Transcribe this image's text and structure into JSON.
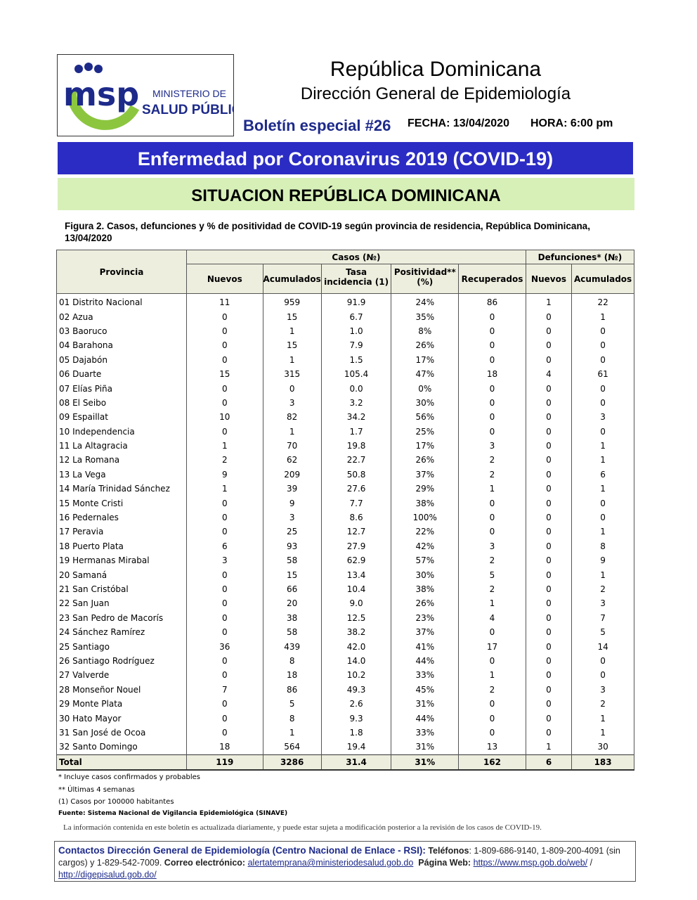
{
  "header": {
    "logo_text": "msp",
    "logo_line1": "MINISTERIO DE",
    "logo_line2": "SALUD PÚBLICA",
    "title": "República Dominicana",
    "subtitle": "Dirección General de Epidemiología",
    "boletin": "Boletín especial #26",
    "fecha": "FECHA: 13/04/2020",
    "hora": "HORA: 6:00 pm"
  },
  "banner": "Enfermedad por Coronavirus 2019 (COVID-19)",
  "section": "SITUACION REPÚBLICA DOMINICANA",
  "figure_caption": "Figura 2. Casos, defunciones y % de positividad de COVID-19 según provincia de residencia, República Dominicana, 13/04/2020",
  "table": {
    "group_headers": {
      "provincia": "Provincia",
      "casos": "Casos (№)",
      "defunciones": "Defunciones* (№)"
    },
    "columns": [
      "Nuevos",
      "Acumulados",
      "Tasa incidencia (1)",
      "Positividad** (%)",
      "Recuperados",
      "Nuevos",
      "Acumulados"
    ],
    "rows": [
      [
        "01 Distrito Nacional",
        "11",
        "959",
        "91.9",
        "24%",
        "86",
        "1",
        "22"
      ],
      [
        "02 Azua",
        "0",
        "15",
        "6.7",
        "35%",
        "0",
        "0",
        "1"
      ],
      [
        "03 Baoruco",
        "0",
        "1",
        "1.0",
        "8%",
        "0",
        "0",
        "0"
      ],
      [
        "04 Barahona",
        "0",
        "15",
        "7.9",
        "26%",
        "0",
        "0",
        "0"
      ],
      [
        "05 Dajabón",
        "0",
        "1",
        "1.5",
        "17%",
        "0",
        "0",
        "0"
      ],
      [
        "06 Duarte",
        "15",
        "315",
        "105.4",
        "47%",
        "18",
        "4",
        "61"
      ],
      [
        "07 Elías Piña",
        "0",
        "0",
        "0.0",
        "0%",
        "0",
        "0",
        "0"
      ],
      [
        "08 El Seibo",
        "0",
        "3",
        "3.2",
        "30%",
        "0",
        "0",
        "0"
      ],
      [
        "09 Espaillat",
        "10",
        "82",
        "34.2",
        "56%",
        "0",
        "0",
        "3"
      ],
      [
        "10 Independencia",
        "0",
        "1",
        "1.7",
        "25%",
        "0",
        "0",
        "0"
      ],
      [
        "11 La Altagracia",
        "1",
        "70",
        "19.8",
        "17%",
        "3",
        "0",
        "1"
      ],
      [
        "12 La Romana",
        "2",
        "62",
        "22.7",
        "26%",
        "2",
        "0",
        "1"
      ],
      [
        "13 La Vega",
        "9",
        "209",
        "50.8",
        "37%",
        "2",
        "0",
        "6"
      ],
      [
        "14 María Trinidad Sánchez",
        "1",
        "39",
        "27.6",
        "29%",
        "1",
        "0",
        "1"
      ],
      [
        "15 Monte Cristi",
        "0",
        "9",
        "7.7",
        "38%",
        "0",
        "0",
        "0"
      ],
      [
        "16 Pedernales",
        "0",
        "3",
        "8.6",
        "100%",
        "0",
        "0",
        "0"
      ],
      [
        "17 Peravia",
        "0",
        "25",
        "12.7",
        "22%",
        "0",
        "0",
        "1"
      ],
      [
        "18 Puerto Plata",
        "6",
        "93",
        "27.9",
        "42%",
        "3",
        "0",
        "8"
      ],
      [
        "19 Hermanas Mirabal",
        "3",
        "58",
        "62.9",
        "57%",
        "2",
        "0",
        "9"
      ],
      [
        "20 Samaná",
        "0",
        "15",
        "13.4",
        "30%",
        "5",
        "0",
        "1"
      ],
      [
        "21 San Cristóbal",
        "0",
        "66",
        "10.4",
        "38%",
        "2",
        "0",
        "2"
      ],
      [
        "22 San Juan",
        "0",
        "20",
        "9.0",
        "26%",
        "1",
        "0",
        "3"
      ],
      [
        "23 San Pedro de Macorís",
        "0",
        "38",
        "12.5",
        "23%",
        "4",
        "0",
        "7"
      ],
      [
        "24 Sánchez Ramírez",
        "0",
        "58",
        "38.2",
        "37%",
        "0",
        "0",
        "5"
      ],
      [
        "25 Santiago",
        "36",
        "439",
        "42.0",
        "41%",
        "17",
        "0",
        "14"
      ],
      [
        "26 Santiago Rodríguez",
        "0",
        "8",
        "14.0",
        "44%",
        "0",
        "0",
        "0"
      ],
      [
        "27 Valverde",
        "0",
        "18",
        "10.2",
        "33%",
        "1",
        "0",
        "0"
      ],
      [
        "28 Monseñor Nouel",
        "7",
        "86",
        "49.3",
        "45%",
        "2",
        "0",
        "3"
      ],
      [
        "29 Monte Plata",
        "0",
        "5",
        "2.6",
        "31%",
        "0",
        "0",
        "2"
      ],
      [
        "30 Hato Mayor",
        "0",
        "8",
        "9.3",
        "44%",
        "0",
        "0",
        "1"
      ],
      [
        "31 San José de Ocoa",
        "0",
        "1",
        "1.8",
        "33%",
        "0",
        "0",
        "1"
      ],
      [
        "32 Santo Domingo",
        "18",
        "564",
        "19.4",
        "31%",
        "13",
        "1",
        "30"
      ]
    ],
    "total": [
      "Total",
      "119",
      "3286",
      "31.4",
      "31%",
      "162",
      "6",
      "183"
    ]
  },
  "notes": [
    "* Incluye casos confirmados y probables",
    "** Últimas 4 semanas",
    "(1) Casos por 100000 habitantes",
    "Fuente: Sistema Nacional de Vigilancia Epidemiológica (SINAVE)"
  ],
  "info": "La información contenida en este boletín es actualizada diariamente, y puede estar sujeta a modificación posterior a la revisión de los casos de COVID-19.",
  "contact": {
    "title": "Contactos Dirección General de Epidemiología (Centro Nacional de Enlace - RSI):",
    "phones_label": "Teléfonos",
    "phones": ": 1-809-686-9140, 1-809-200-4091 (sin cargos) y 1-829-542-7009.",
    "email_label": "Correo electrónico:",
    "email": "alertatemprana@ministeriodesalud.gob.do",
    "web_label": "Página Web:",
    "web1": "https://www.msp.gob.do/web/",
    "sep": " / ",
    "web2": "http://digepisalud.gob.do/"
  },
  "colors": {
    "banner": "#2b2cc4",
    "section_bg": "#d7f0b8",
    "logo_blue": "#1d2a8a",
    "logo_green": "#8cc63f"
  }
}
